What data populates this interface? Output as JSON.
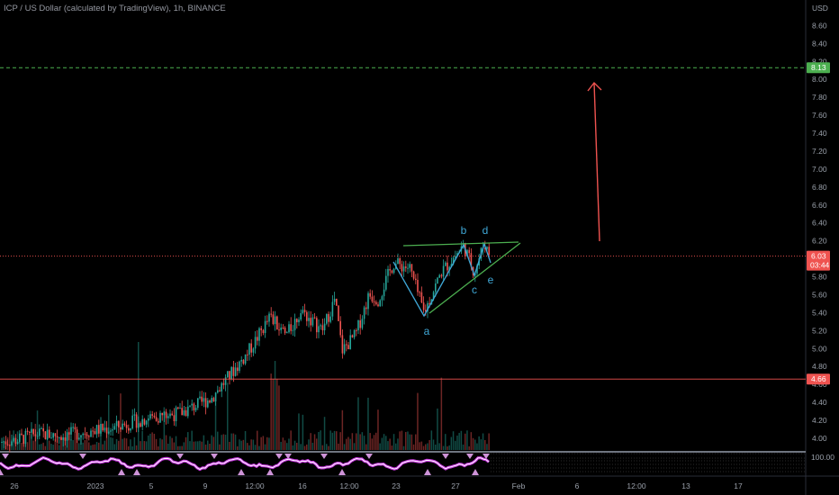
{
  "header": {
    "title": "ICP / US Dollar (calculated by TradingView), 1h, BINANCE"
  },
  "colors": {
    "background": "#000000",
    "up": "#26a69a",
    "down": "#ef5350",
    "wave": "#3fa7d6",
    "target": "#4caf50",
    "arrow": "#ef5350",
    "oscillator": "#ffffff",
    "oscillator_fill": "#e040fb"
  },
  "chart_data": {
    "type": "candlestick",
    "symbol": "ICP / US Dollar",
    "interval": "1h",
    "exchange": "BINANCE",
    "currency": "USD",
    "yaxis": {
      "min": 4.0,
      "max": 8.6,
      "ticks": [
        "8.60",
        "8.40",
        "8.20",
        "8.00",
        "7.80",
        "7.60",
        "7.40",
        "7.20",
        "7.00",
        "6.80",
        "6.60",
        "6.40",
        "6.20",
        "6.00",
        "5.80",
        "5.60",
        "5.40",
        "5.20",
        "5.00",
        "4.80",
        "4.60",
        "4.40",
        "4.20",
        "4.00"
      ]
    },
    "xaxis": {
      "ticks": [
        "26",
        "2023",
        "5",
        "9",
        "12:00",
        "16",
        "12:00",
        "23",
        "27",
        "Feb",
        "6",
        "12:00",
        "13",
        "17"
      ]
    },
    "price_path": [
      {
        "date": "Dec 24",
        "close": 3.96
      },
      {
        "date": "Dec 27",
        "close": 3.98
      },
      {
        "date": "Dec 30",
        "close": 4.05
      },
      {
        "date": "Jan 2",
        "close": 4.03
      },
      {
        "date": "Jan 5",
        "close": 4.08
      },
      {
        "date": "Jan 7",
        "close": 4.12
      },
      {
        "date": "Jan 9",
        "close": 4.22
      },
      {
        "date": "Jan 11",
        "close": 4.28
      },
      {
        "date": "Jan 12",
        "close": 4.45
      },
      {
        "date": "Jan 13",
        "close": 4.95
      },
      {
        "date": "Jan 14",
        "close": 5.35
      },
      {
        "date": "Jan 15",
        "close": 5.15
      },
      {
        "date": "Jan 16",
        "close": 5.42
      },
      {
        "date": "Jan 17",
        "close": 5.2
      },
      {
        "date": "Jan 18",
        "close": 5.55
      },
      {
        "date": "Jan 19",
        "close": 4.98
      },
      {
        "date": "Jan 20",
        "close": 5.15
      },
      {
        "date": "Jan 21",
        "close": 5.6
      },
      {
        "date": "Jan 22",
        "close": 5.55
      },
      {
        "date": "Jan 23",
        "close": 5.95
      },
      {
        "date": "Jan 24",
        "close": 5.9
      },
      {
        "date": "Jan 25",
        "close": 5.4
      },
      {
        "date": "Jan 26",
        "close": 5.85
      },
      {
        "date": "Jan 27",
        "close": 6.15
      },
      {
        "date": "Jan 28",
        "close": 5.85
      },
      {
        "date": "Jan 29",
        "close": 6.18
      },
      {
        "date": "Jan 29 end",
        "close": 6.03
      }
    ],
    "price_lines": [
      {
        "label": "current",
        "value": 6.03,
        "badge_top": "6.03",
        "badge_bottom": "03:44",
        "color": "#ef5350",
        "style": "dotted"
      },
      {
        "label": "target",
        "value": 8.13,
        "badge_top": "8.13",
        "color": "#4caf50",
        "style": "dashed"
      },
      {
        "label": "support",
        "value": 4.66,
        "badge_top": "4.66",
        "color": "#ef5350",
        "style": "solid"
      }
    ],
    "wave_labels": [
      {
        "text": "a",
        "price": 5.4
      },
      {
        "text": "b",
        "price": 6.2
      },
      {
        "text": "c",
        "price": 5.64
      },
      {
        "text": "d",
        "price": 6.2
      },
      {
        "text": "e",
        "price": 5.88
      }
    ],
    "projection_arrow": {
      "from": 6.2,
      "to": 7.95
    },
    "oscillator": {
      "level_label": "100.00"
    }
  }
}
